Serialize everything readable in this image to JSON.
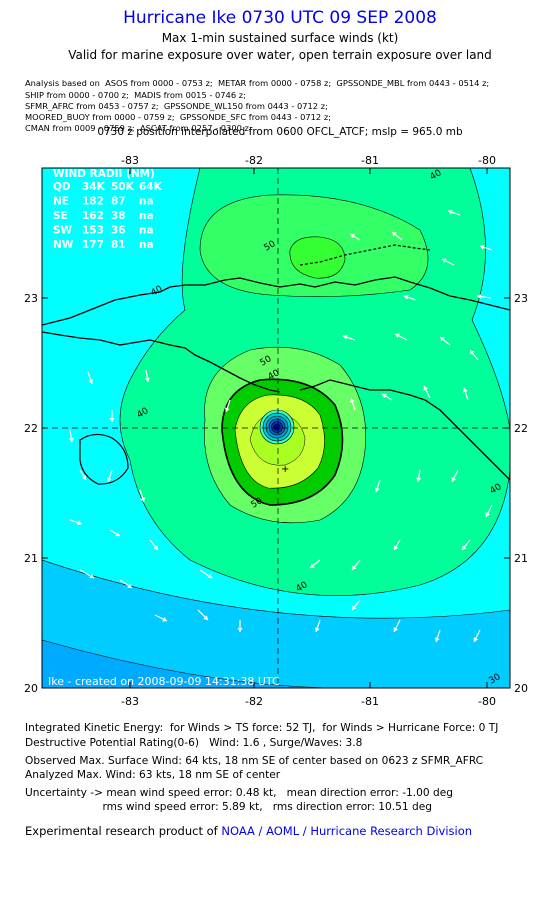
{
  "header": {
    "title": "Hurricane Ike 0730 UTC 09 SEP 2008",
    "subtitle_1": "Max 1-min sustained surface winds (kt)",
    "subtitle_2": "Valid for marine exposure over water, open terrain exposure over land",
    "analysis_lines": [
      "Analysis based on  ASOS from 0000 - 0753 z;  METAR from 0000 - 0758 z;  GPSSONDE_MBL from 0443 - 0514 z;",
      "SHIP from 0000 - 0700 z;  MADIS from 0015 - 0746 z;",
      "SFMR_AFRC from 0453 - 0757 z;  GPSSONDE_WL150 from 0443 - 0712 z;",
      "MOORED_BUOY from 0000 - 0759 z;  GPSSONDE_SFC from 0443 - 0712 z;",
      "CMAN from 0009 - 0759 z;  ASCAT from 0257 - 0300 z;"
    ],
    "position_line": "0730 z position interpolated from 0600 OFCL_ATCF; mslp = 965.0 mb"
  },
  "map": {
    "x_ticks": [
      "-83",
      "-82",
      "-81",
      "-80"
    ],
    "y_ticks": [
      "23",
      "22",
      "21",
      "20"
    ],
    "wind_radii": {
      "title": "WIND RADII (NM)",
      "header": [
        "QD",
        "34K",
        "50K",
        "64K"
      ],
      "rows": [
        [
          "NE",
          "182",
          "87",
          "na"
        ],
        [
          "SE",
          "162",
          "38",
          "na"
        ],
        [
          "SW",
          "153",
          "36",
          "na"
        ],
        [
          "NW",
          "177",
          "81",
          "na"
        ]
      ]
    },
    "contour_labels": [
      "40",
      "50",
      "40",
      "50",
      "40",
      "50",
      "40",
      "40",
      "30",
      "40"
    ],
    "credit": "Ike - created on 2008-09-09 14:31:38 UTC",
    "colors": {
      "ocean_30": "#00ffff",
      "deep_20": "#00ccff",
      "band_40": "#00ff99",
      "band_50": "#33ff33",
      "band_60": "#ccff33",
      "band_64": "#00cc00",
      "eye": "#0000aa"
    }
  },
  "info": {
    "ike_line": "Integrated Kinetic Energy:  for Winds > TS force: 52 TJ,  for Winds > Hurricane Force: 0 TJ",
    "dp_line": "Destructive Potential Rating(0-6)   Wind: 1.6 , Surge/Waves: 3.8",
    "obs_line": "Observed Max. Surface Wind: 64 kts, 18 nm SE of center based on 0623 z SFMR_AFRC",
    "analyzed_line": "Analyzed Max. Wind: 63 kts, 18 nm SE of center",
    "uncert_line_1": "Uncertainty -> mean wind speed error: 0.48 kt,   mean direction error: -1.00 deg",
    "uncert_line_2": "                       rms wind speed error: 5.89 kt,   rms direction error: 10.51 deg"
  },
  "footer": {
    "prefix": "Experimental research product of ",
    "org": "NOAA / AOML / Hurricane Research Division"
  }
}
